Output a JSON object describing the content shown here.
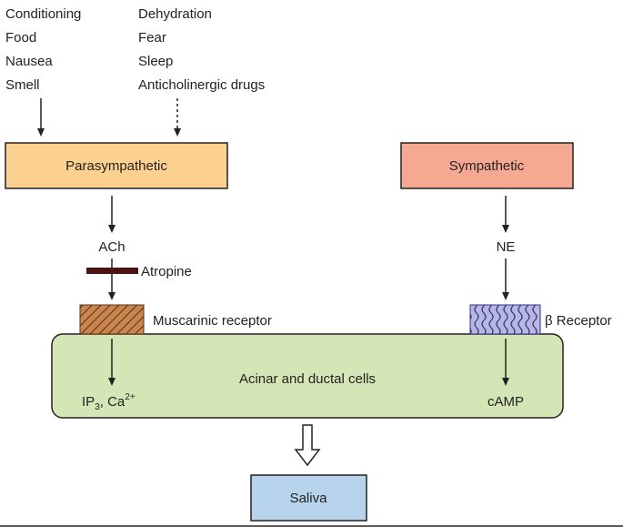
{
  "parasympathetic_triggers": [
    "Conditioning",
    "Food",
    "Nausea",
    "Smell"
  ],
  "parasympathetic_inhibitors": [
    "Dehydration",
    "Fear",
    "Sleep",
    "Anticholinergic drugs"
  ],
  "parasympathetic": {
    "label": "Parasympathetic",
    "transmitter": "ACh",
    "blocker": "Atropine",
    "receptor": "Muscarinic receptor",
    "second_messenger": "IP",
    "second_messenger_sub": "3",
    "second_messenger_2": ", Ca",
    "second_messenger_2_sup": "2+"
  },
  "sympathetic": {
    "label": "Sympathetic",
    "transmitter": "NE",
    "receptor": "β Receptor",
    "second_messenger": "cAMP"
  },
  "cells": {
    "label": "Acinar and ductal cells"
  },
  "output": {
    "label": "Saliva"
  },
  "colors": {
    "parasympathetic_box": "#fcd08f",
    "sympathetic_box": "#f5a993",
    "cells_box": "#d4e6b5",
    "saliva_box": "#b8d3ec",
    "atropine_bar": "#4a1414",
    "muscarinic_receptor": "#b5683e",
    "beta_receptor": "#a9a7d8"
  }
}
